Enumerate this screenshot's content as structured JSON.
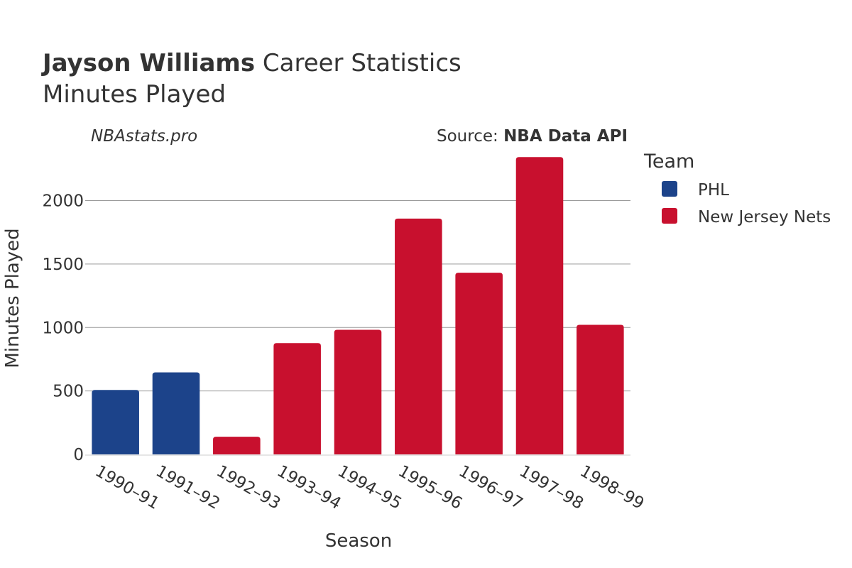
{
  "header": {
    "player_name": "Jayson Williams",
    "title_suffix": "Career Statistics",
    "subtitle": "Minutes Played"
  },
  "credits": {
    "site": "NBAstats.pro",
    "source_prefix": "Source: ",
    "source_name": "NBA Data API"
  },
  "legend": {
    "title": "Team",
    "items": [
      {
        "label": "PHL",
        "color": "#1c438a"
      },
      {
        "label": "New Jersey Nets",
        "color": "#c8102e"
      }
    ]
  },
  "chart_data": {
    "type": "bar",
    "title": "Jayson Williams Career Statistics",
    "subtitle": "Minutes Played",
    "xlabel": "Season",
    "ylabel": "Minutes Played",
    "ylim": [
      0,
      2350
    ],
    "yticks": [
      0,
      500,
      1000,
      1500,
      2000
    ],
    "grid": true,
    "legend_position": "top-right",
    "categories": [
      "1990–91",
      "1991–92",
      "1992–93",
      "1993–94",
      "1994–95",
      "1995–96",
      "1996–97",
      "1997–98",
      "1998–99"
    ],
    "values": [
      508,
      646,
      139,
      877,
      982,
      1858,
      1432,
      2343,
      1021
    ],
    "teams": [
      "PHL",
      "PHL",
      "New Jersey Nets",
      "New Jersey Nets",
      "New Jersey Nets",
      "New Jersey Nets",
      "New Jersey Nets",
      "New Jersey Nets",
      "New Jersey Nets"
    ]
  }
}
